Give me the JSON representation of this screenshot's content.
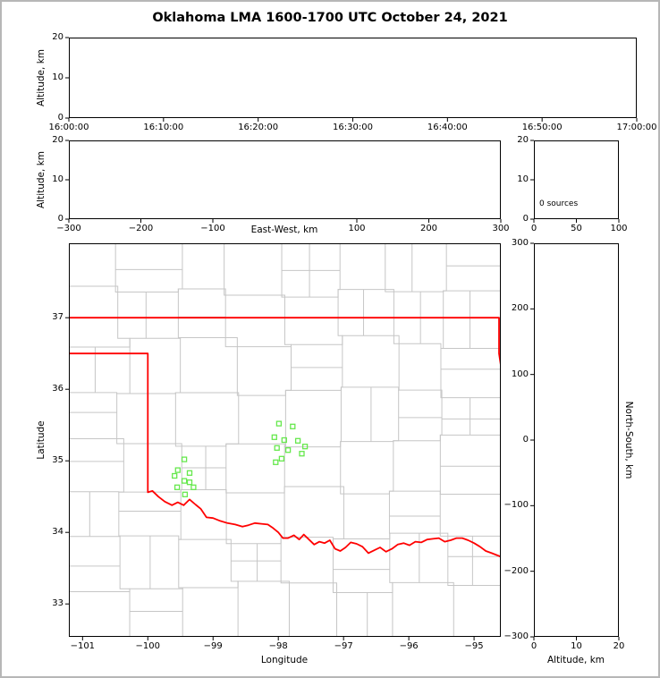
{
  "title": "Oklahoma LMA 1600-1700 UTC October 24, 2021",
  "colors": {
    "axis": "#000000",
    "figure_border": "#b7b7b7",
    "state_border": "#ff0000",
    "county_lines": "#c6c6c6",
    "source_marker": "#66e84d"
  },
  "chart_data": [
    {
      "id": "time-height-panel",
      "type": "scatter",
      "xlabel": "",
      "ylabel": "Altitude, km",
      "xticklabels": [
        "16:00:00",
        "16:10:00",
        "16:20:00",
        "16:30:00",
        "16:40:00",
        "16:50:00",
        "17:00:00"
      ],
      "ylim": [
        0,
        20
      ],
      "yticks": [
        0,
        10,
        20
      ],
      "points": []
    },
    {
      "id": "east-west-height-panel",
      "type": "scatter",
      "xlabel": "East-West, km",
      "ylabel": "Altitude, km",
      "xlim": [
        -300,
        300
      ],
      "xticks": [
        -300,
        -200,
        -100,
        100,
        200,
        300
      ],
      "ylim": [
        0,
        20
      ],
      "yticks": [
        0,
        10,
        20
      ],
      "points": []
    },
    {
      "id": "altitude-histogram-panel",
      "type": "histogram",
      "annotation": "0 sources",
      "xlim": [
        0,
        100
      ],
      "xticks": [
        0,
        50,
        100
      ],
      "ylim": [
        0,
        20
      ],
      "yticks": [
        0,
        10,
        20
      ],
      "values": []
    },
    {
      "id": "plan-view-map-panel",
      "type": "scatter",
      "xlabel": "Longitude",
      "ylabel": "Latitude",
      "xlim": [
        -101.21,
        -94.59
      ],
      "ylim": [
        32.54,
        38.04
      ],
      "xticks": [
        -101,
        -100,
        -99,
        -98,
        -97,
        -96,
        -95
      ],
      "yticks": [
        33,
        34,
        35,
        36,
        37
      ],
      "sources": {
        "marker": "open-square",
        "color": "#66e84d",
        "lon_lat": [
          [
            -99.44,
            35.02
          ],
          [
            -99.54,
            34.87
          ],
          [
            -99.36,
            34.83
          ],
          [
            -99.59,
            34.79
          ],
          [
            -99.44,
            34.72
          ],
          [
            -99.36,
            34.7
          ],
          [
            -99.55,
            34.63
          ],
          [
            -99.3,
            34.63
          ],
          [
            -99.43,
            34.53
          ],
          [
            -97.99,
            35.52
          ],
          [
            -97.78,
            35.48
          ],
          [
            -98.06,
            35.33
          ],
          [
            -97.91,
            35.29
          ],
          [
            -97.7,
            35.28
          ],
          [
            -98.02,
            35.18
          ],
          [
            -97.85,
            35.15
          ],
          [
            -97.59,
            35.2
          ],
          [
            -97.64,
            35.1
          ],
          [
            -97.95,
            35.03
          ],
          [
            -98.04,
            34.98
          ]
        ]
      },
      "state_border": {
        "color": "#ff0000",
        "north_east": [
          [
            -101.21,
            37.0
          ],
          [
            -94.618,
            37.0
          ],
          [
            -94.618,
            36.5
          ],
          [
            -94.43,
            35.38
          ]
        ],
        "west_south": [
          [
            -101.21,
            36.5
          ],
          [
            -100.0,
            36.5
          ],
          [
            -100.0,
            34.56
          ],
          [
            -99.93,
            34.58
          ],
          [
            -99.84,
            34.5
          ],
          [
            -99.74,
            34.43
          ],
          [
            -99.63,
            34.38
          ],
          [
            -99.54,
            34.42
          ],
          [
            -99.45,
            34.38
          ],
          [
            -99.36,
            34.46
          ],
          [
            -99.27,
            34.39
          ],
          [
            -99.19,
            34.33
          ],
          [
            -99.1,
            34.21
          ],
          [
            -99.0,
            34.2
          ],
          [
            -98.89,
            34.16
          ],
          [
            -98.78,
            34.13
          ],
          [
            -98.66,
            34.11
          ],
          [
            -98.55,
            34.08
          ],
          [
            -98.46,
            34.1
          ],
          [
            -98.36,
            34.13
          ],
          [
            -98.26,
            34.12
          ],
          [
            -98.16,
            34.11
          ],
          [
            -98.08,
            34.06
          ],
          [
            -98.0,
            34.0
          ],
          [
            -97.93,
            33.92
          ],
          [
            -97.85,
            33.92
          ],
          [
            -97.76,
            33.96
          ],
          [
            -97.68,
            33.9
          ],
          [
            -97.61,
            33.97
          ],
          [
            -97.53,
            33.9
          ],
          [
            -97.45,
            33.83
          ],
          [
            -97.37,
            33.87
          ],
          [
            -97.29,
            33.85
          ],
          [
            -97.21,
            33.89
          ],
          [
            -97.13,
            33.77
          ],
          [
            -97.05,
            33.74
          ],
          [
            -96.97,
            33.79
          ],
          [
            -96.89,
            33.86
          ],
          [
            -96.8,
            33.84
          ],
          [
            -96.71,
            33.8
          ],
          [
            -96.62,
            33.71
          ],
          [
            -96.53,
            33.75
          ],
          [
            -96.44,
            33.79
          ],
          [
            -96.35,
            33.73
          ],
          [
            -96.26,
            33.77
          ],
          [
            -96.17,
            33.83
          ],
          [
            -96.08,
            33.85
          ],
          [
            -95.99,
            33.82
          ],
          [
            -95.9,
            33.87
          ],
          [
            -95.81,
            33.86
          ],
          [
            -95.72,
            33.9
          ],
          [
            -95.63,
            33.91
          ],
          [
            -95.54,
            33.92
          ],
          [
            -95.45,
            33.87
          ],
          [
            -95.36,
            33.89
          ],
          [
            -95.27,
            33.92
          ],
          [
            -95.18,
            33.92
          ],
          [
            -95.09,
            33.89
          ],
          [
            -95.0,
            33.85
          ],
          [
            -94.91,
            33.8
          ],
          [
            -94.82,
            33.74
          ],
          [
            -94.73,
            33.71
          ],
          [
            -94.59,
            33.66
          ]
        ]
      }
    },
    {
      "id": "north-south-height-panel",
      "type": "scatter",
      "xlabel": "Altitude, km",
      "ylabel_right": "North-South, km",
      "xlim": [
        0,
        20
      ],
      "xticks": [
        0,
        10,
        20
      ],
      "ylim": [
        -300,
        300
      ],
      "yticks": [
        -300,
        -200,
        -100,
        0,
        100,
        200,
        300
      ],
      "points": []
    }
  ]
}
